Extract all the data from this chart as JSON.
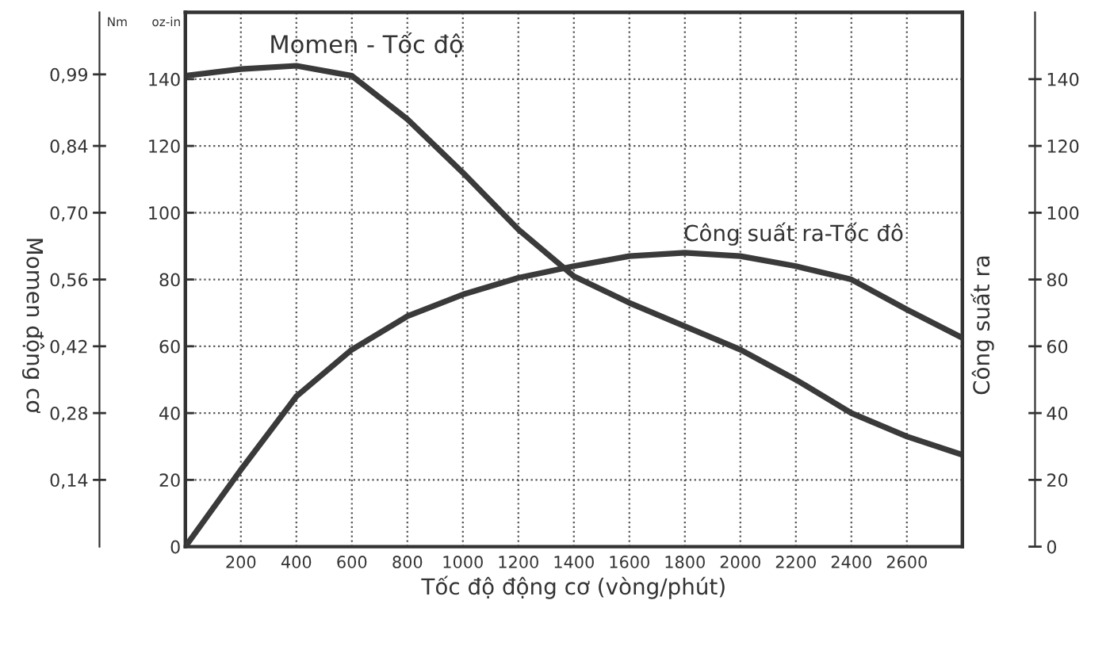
{
  "chart_data": {
    "type": "line",
    "xlabel": "Tốc độ động cơ (vòng/phút)",
    "ylabel": "Momen động cơ",
    "y2label": "Công suất ra",
    "x": [
      0,
      200,
      400,
      600,
      800,
      1000,
      1200,
      1400,
      1600,
      1800,
      2000,
      2200,
      2400,
      2600,
      2800
    ],
    "series": [
      {
        "color": "#3a3a3a",
        "values": [
          141,
          143,
          144,
          141,
          128,
          112,
          95,
          81,
          73,
          66,
          59,
          50,
          40,
          33,
          27.5
        ]
      },
      {
        "color": "#3a3a3a",
        "axis": "y2",
        "values": [
          0,
          23,
          45,
          59,
          69,
          75.5,
          80.5,
          84,
          87,
          88,
          87,
          84,
          80,
          71,
          62.5
        ]
      }
    ],
    "xlim": [
      0,
      2800
    ],
    "xticks": [
      200,
      400,
      600,
      800,
      1000,
      1200,
      1400,
      1600,
      1800,
      2000,
      2200,
      2400,
      2600
    ],
    "ylim": [
      0,
      160
    ],
    "yticks": [
      0,
      20,
      40,
      60,
      80,
      100,
      120,
      140
    ],
    "y2lim": [
      0,
      160
    ],
    "y2ticks": [
      0,
      20,
      40,
      60,
      80,
      100,
      120,
      140
    ],
    "y3lim": [
      0,
      1.12
    ],
    "y3ticks": [
      {
        "value": 0.14,
        "label": "0,14"
      },
      {
        "value": 0.28,
        "label": "0,28"
      },
      {
        "value": 0.42,
        "label": "0,42"
      },
      {
        "value": 0.56,
        "label": "0,56"
      },
      {
        "value": 0.7,
        "label": "0,70"
      },
      {
        "value": 0.84,
        "label": "0,84"
      },
      {
        "value": 0.99,
        "label": "0,99"
      }
    ],
    "grid": true,
    "legend": false,
    "marker": "none",
    "line_style": "solid",
    "annotations": [
      "Momen - Tốc độ",
      "Công suất ra-Tốc đô",
      "Nm",
      "oz-in"
    ]
  }
}
